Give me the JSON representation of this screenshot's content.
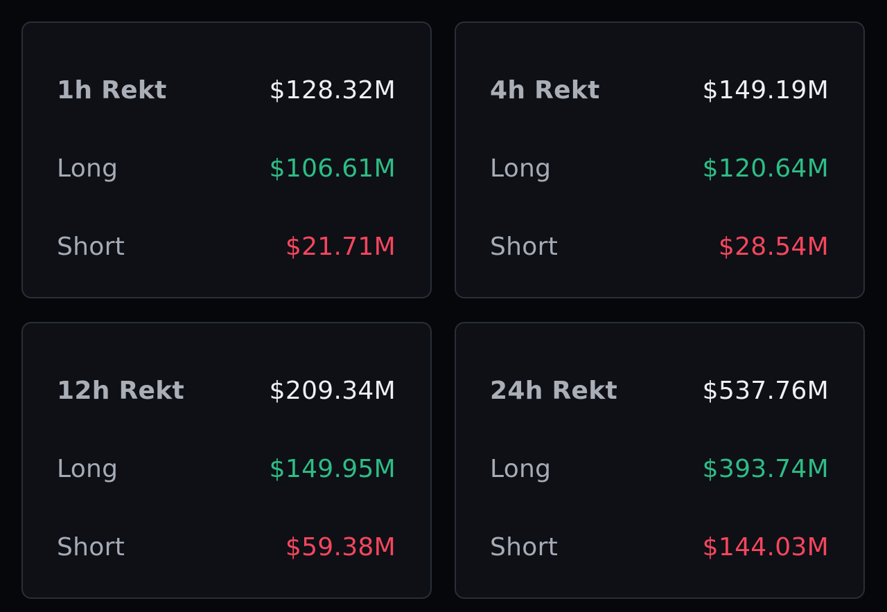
{
  "colors": {
    "background": "#05070b",
    "card": "#0e1016",
    "border": "#2a2e37",
    "label": "#a6acb6",
    "total": "#eef0f3",
    "long": "#2ebd85",
    "short": "#f6465d"
  },
  "cards": [
    {
      "title": "1h Rekt",
      "total": "$128.32M",
      "long_label": "Long",
      "long": "$106.61M",
      "short_label": "Short",
      "short": "$21.71M"
    },
    {
      "title": "4h Rekt",
      "total": "$149.19M",
      "long_label": "Long",
      "long": "$120.64M",
      "short_label": "Short",
      "short": "$28.54M"
    },
    {
      "title": "12h Rekt",
      "total": "$209.34M",
      "long_label": "Long",
      "long": "$149.95M",
      "short_label": "Short",
      "short": "$59.38M"
    },
    {
      "title": "24h Rekt",
      "total": "$537.76M",
      "long_label": "Long",
      "long": "$393.74M",
      "short_label": "Short",
      "short": "$144.03M"
    }
  ]
}
